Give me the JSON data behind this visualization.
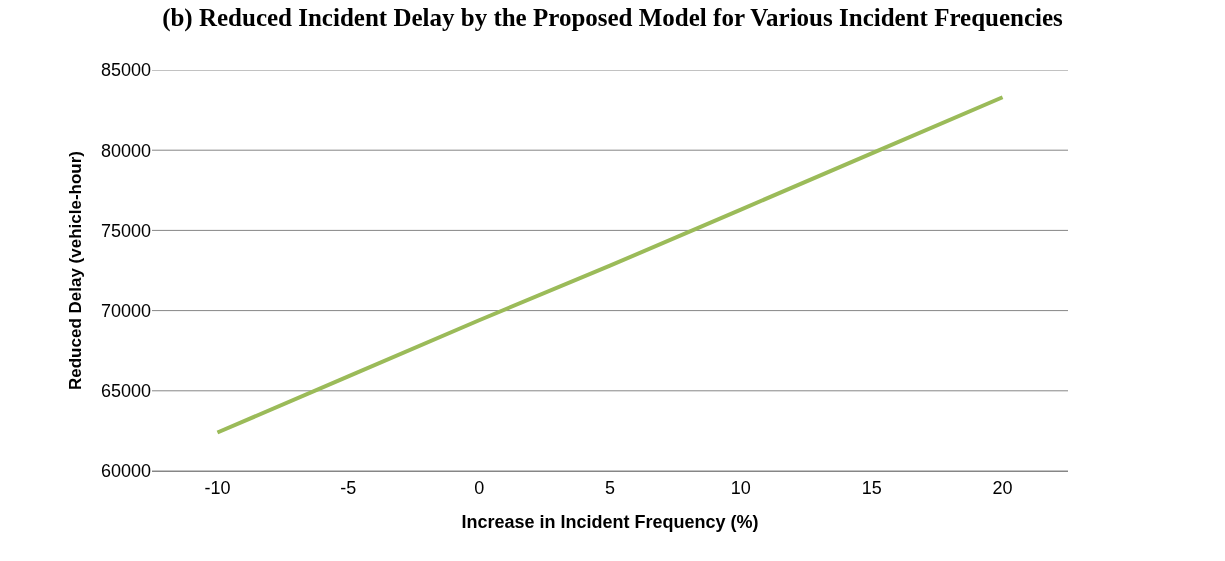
{
  "chart_data": {
    "type": "line",
    "title": "(b) Reduced Incident Delay by the Proposed Model for Various Incident Frequencies",
    "xlabel": "Increase in Incident Frequency (%)",
    "ylabel": "Reduced Delay (vehicle-hour)",
    "categories": [
      "-10",
      "-5",
      "0",
      "5",
      "10",
      "15",
      "20"
    ],
    "series": [
      {
        "color": "#9bbb59",
        "values": [
          62400,
          65900,
          69400,
          72800,
          76300,
          79800,
          83300
        ]
      }
    ],
    "ylim": [
      60000,
      85000
    ],
    "yticks": [
      60000,
      65000,
      70000,
      75000,
      80000,
      85000
    ],
    "grid": "y",
    "marker": "none",
    "line_style": "solid"
  }
}
